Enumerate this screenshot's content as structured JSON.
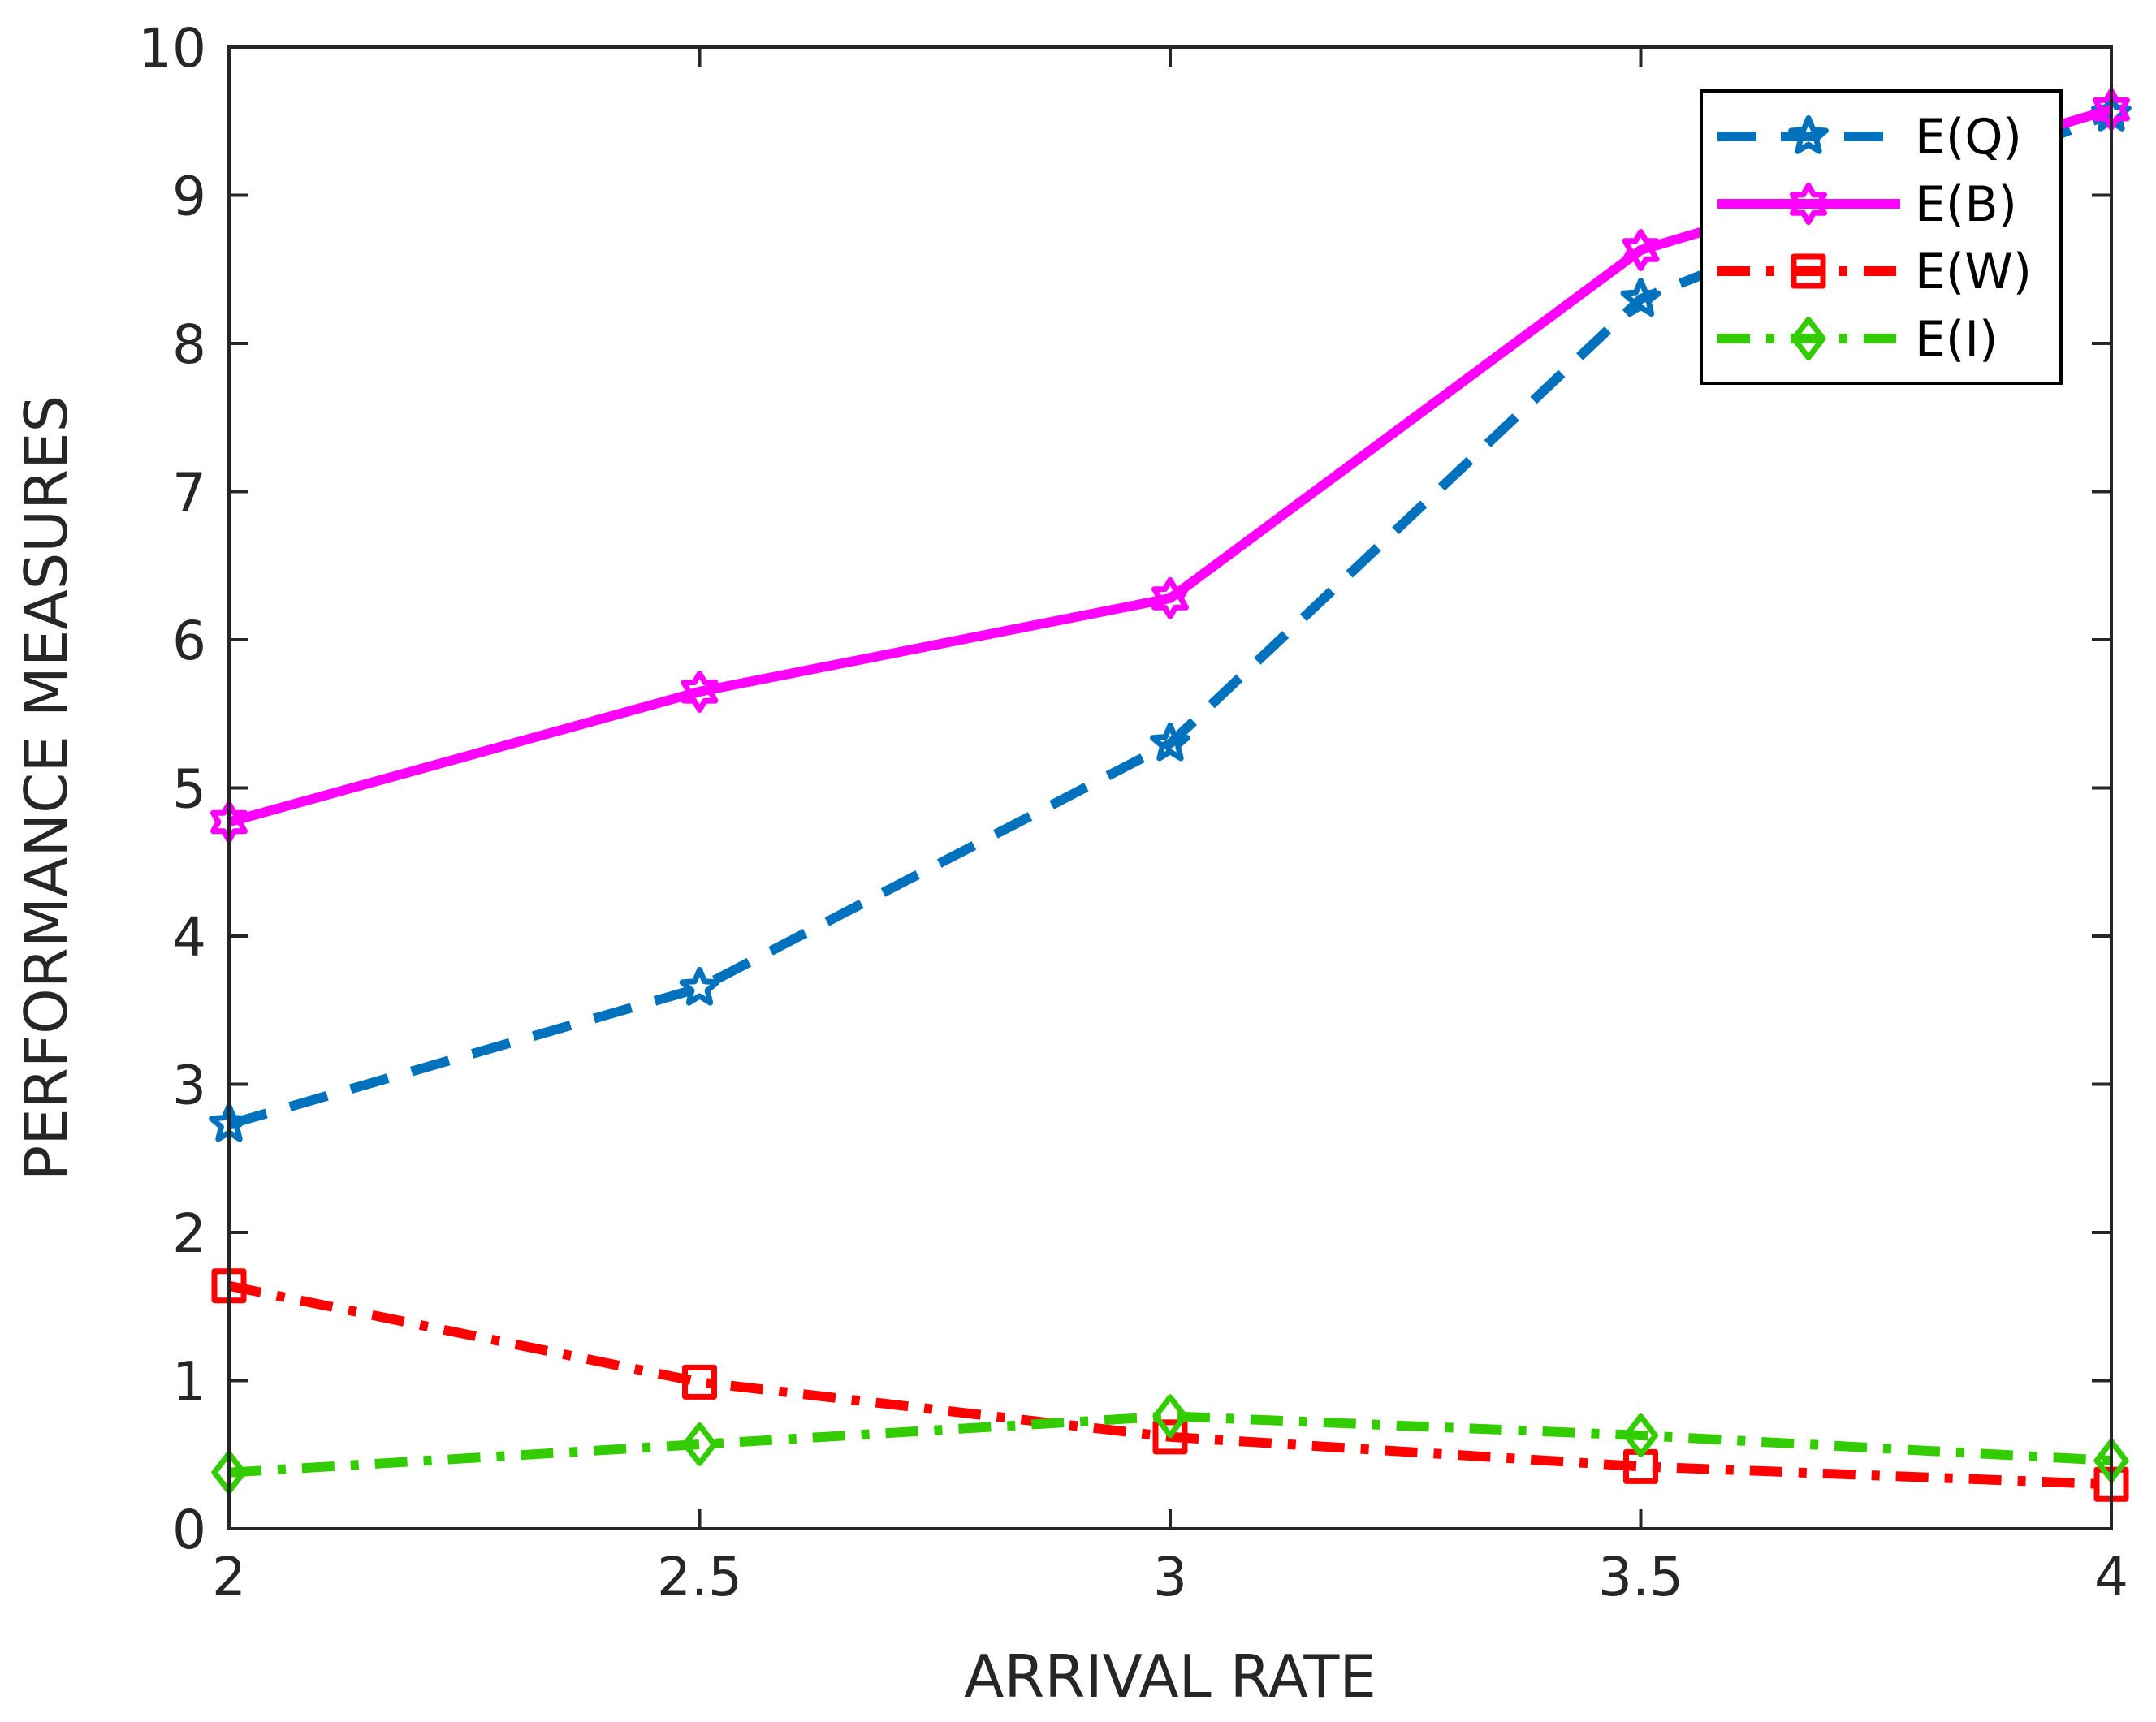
{
  "chart_data": {
    "type": "line",
    "title": "",
    "xlabel": "ARRIVAL RATE",
    "ylabel": "PERFORMANCE MEASURES",
    "xlim": [
      2,
      4
    ],
    "ylim": [
      0,
      10
    ],
    "x": [
      2,
      2.5,
      3,
      3.5,
      4
    ],
    "xticks": [
      "2",
      "2.5",
      "3",
      "3.5",
      "4"
    ],
    "yticks": [
      "0",
      "1",
      "2",
      "3",
      "4",
      "5",
      "6",
      "7",
      "8",
      "9",
      "10"
    ],
    "legend_position": "top-right",
    "series": [
      {
        "name": "E(Q)",
        "values": [
          2.73,
          3.65,
          5.3,
          8.3,
          9.55
        ],
        "color": "#0072BD",
        "dash": "dashed",
        "marker": "star"
      },
      {
        "name": "E(B)",
        "values": [
          4.77,
          5.65,
          6.28,
          8.63,
          9.58
        ],
        "color": "#FF00FF",
        "dash": "solid",
        "marker": "hexagram"
      },
      {
        "name": "E(W)",
        "values": [
          1.64,
          0.99,
          0.62,
          0.42,
          0.3
        ],
        "color": "#FF0000",
        "dash": "dashdot",
        "marker": "square"
      },
      {
        "name": "E(I)",
        "values": [
          0.38,
          0.57,
          0.76,
          0.63,
          0.46
        ],
        "color": "#33CC00",
        "dash": "dashdot",
        "marker": "diamond"
      }
    ]
  }
}
